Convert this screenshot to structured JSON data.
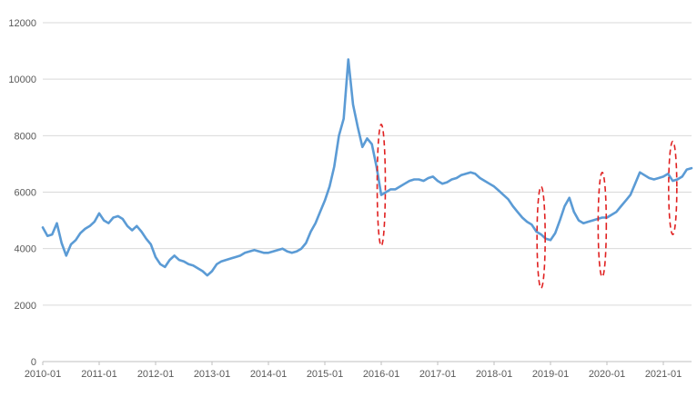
{
  "chart_data": {
    "type": "line",
    "title": "",
    "xlabel": "",
    "ylabel": "",
    "ylim": [
      0,
      12000
    ],
    "xlim": [
      "2010-01",
      "2021-07"
    ],
    "y_ticks": [
      0,
      2000,
      4000,
      6000,
      8000,
      10000,
      12000
    ],
    "y_tick_labels": [
      "0",
      "2000",
      "4000",
      "6000",
      "8000",
      "10000",
      "12000"
    ],
    "x_ticks": [
      "2010-01",
      "2011-01",
      "2012-01",
      "2013-01",
      "2014-01",
      "2015-01",
      "2016-01",
      "2017-01",
      "2018-01",
      "2019-01",
      "2020-01",
      "2021-01"
    ],
    "grid": "horizontal",
    "legend": "none",
    "series": [
      {
        "color": "#5b9bd5",
        "x": [
          "2010-01",
          "2010-02",
          "2010-03",
          "2010-04",
          "2010-05",
          "2010-06",
          "2010-07",
          "2010-08",
          "2010-09",
          "2010-10",
          "2010-11",
          "2010-12",
          "2011-01",
          "2011-02",
          "2011-03",
          "2011-04",
          "2011-05",
          "2011-06",
          "2011-07",
          "2011-08",
          "2011-09",
          "2011-10",
          "2011-11",
          "2011-12",
          "2012-01",
          "2012-02",
          "2012-03",
          "2012-04",
          "2012-05",
          "2012-06",
          "2012-07",
          "2012-08",
          "2012-09",
          "2012-10",
          "2012-11",
          "2012-12",
          "2013-01",
          "2013-02",
          "2013-03",
          "2013-04",
          "2013-05",
          "2013-06",
          "2013-07",
          "2013-08",
          "2013-09",
          "2013-10",
          "2013-11",
          "2013-12",
          "2014-01",
          "2014-02",
          "2014-03",
          "2014-04",
          "2014-05",
          "2014-06",
          "2014-07",
          "2014-08",
          "2014-09",
          "2014-10",
          "2014-11",
          "2014-12",
          "2015-01",
          "2015-02",
          "2015-03",
          "2015-04",
          "2015-05",
          "2015-06",
          "2015-07",
          "2015-08",
          "2015-09",
          "2015-10",
          "2015-11",
          "2015-12",
          "2016-01",
          "2016-02",
          "2016-03",
          "2016-04",
          "2016-05",
          "2016-06",
          "2016-07",
          "2016-08",
          "2016-09",
          "2016-10",
          "2016-11",
          "2016-12",
          "2017-01",
          "2017-02",
          "2017-03",
          "2017-04",
          "2017-05",
          "2017-06",
          "2017-07",
          "2017-08",
          "2017-09",
          "2017-10",
          "2017-11",
          "2017-12",
          "2018-01",
          "2018-02",
          "2018-03",
          "2018-04",
          "2018-05",
          "2018-06",
          "2018-07",
          "2018-08",
          "2018-09",
          "2018-10",
          "2018-11",
          "2018-12",
          "2019-01",
          "2019-02",
          "2019-03",
          "2019-04",
          "2019-05",
          "2019-06",
          "2019-07",
          "2019-08",
          "2019-09",
          "2019-10",
          "2019-11",
          "2019-12",
          "2020-01",
          "2020-02",
          "2020-03",
          "2020-04",
          "2020-05",
          "2020-06",
          "2020-07",
          "2020-08",
          "2020-09",
          "2020-10",
          "2020-11",
          "2020-12",
          "2021-01",
          "2021-02",
          "2021-03",
          "2021-04",
          "2021-05",
          "2021-06",
          "2021-07"
        ],
        "values": [
          4750,
          4450,
          4500,
          4900,
          4200,
          3750,
          4150,
          4300,
          4550,
          4700,
          4800,
          4950,
          5250,
          5000,
          4900,
          5100,
          5150,
          5050,
          4800,
          4650,
          4800,
          4600,
          4350,
          4150,
          3700,
          3450,
          3350,
          3600,
          3750,
          3600,
          3550,
          3450,
          3400,
          3300,
          3200,
          3050,
          3200,
          3450,
          3550,
          3600,
          3650,
          3700,
          3750,
          3850,
          3900,
          3950,
          3900,
          3850,
          3850,
          3900,
          3950,
          4000,
          3900,
          3850,
          3900,
          4000,
          4200,
          4600,
          4900,
          5300,
          5700,
          6200,
          6900,
          8000,
          8600,
          10700,
          9100,
          8300,
          7600,
          7900,
          7700,
          6900,
          5900,
          6000,
          6100,
          6100,
          6200,
          6300,
          6400,
          6450,
          6450,
          6400,
          6500,
          6550,
          6400,
          6300,
          6350,
          6450,
          6500,
          6600,
          6650,
          6700,
          6650,
          6500,
          6400,
          6300,
          6200,
          6050,
          5900,
          5750,
          5500,
          5300,
          5100,
          4950,
          4850,
          4600,
          4500,
          4350,
          4300,
          4550,
          5000,
          5500,
          5800,
          5300,
          5000,
          4900,
          4950,
          5000,
          5050,
          5100,
          5100,
          5200,
          5300,
          5500,
          5700,
          5900,
          6300,
          6700,
          6600,
          6500,
          6450,
          6500,
          6550,
          6650,
          6400,
          6450,
          6550,
          6800,
          6850
        ]
      }
    ],
    "annotations": [
      {
        "shape": "ellipse",
        "x_center": "2016-01",
        "y_range": [
          4100,
          8400
        ],
        "color": "#e02020"
      },
      {
        "shape": "ellipse",
        "x_center": "2018-11",
        "y_range": [
          2600,
          6200
        ],
        "color": "#e02020"
      },
      {
        "shape": "ellipse",
        "x_center": "2019-12",
        "y_range": [
          3000,
          6700
        ],
        "color": "#e02020"
      },
      {
        "shape": "ellipse",
        "x_center": "2021-03",
        "y_range": [
          4500,
          7800
        ],
        "color": "#e02020"
      }
    ]
  }
}
